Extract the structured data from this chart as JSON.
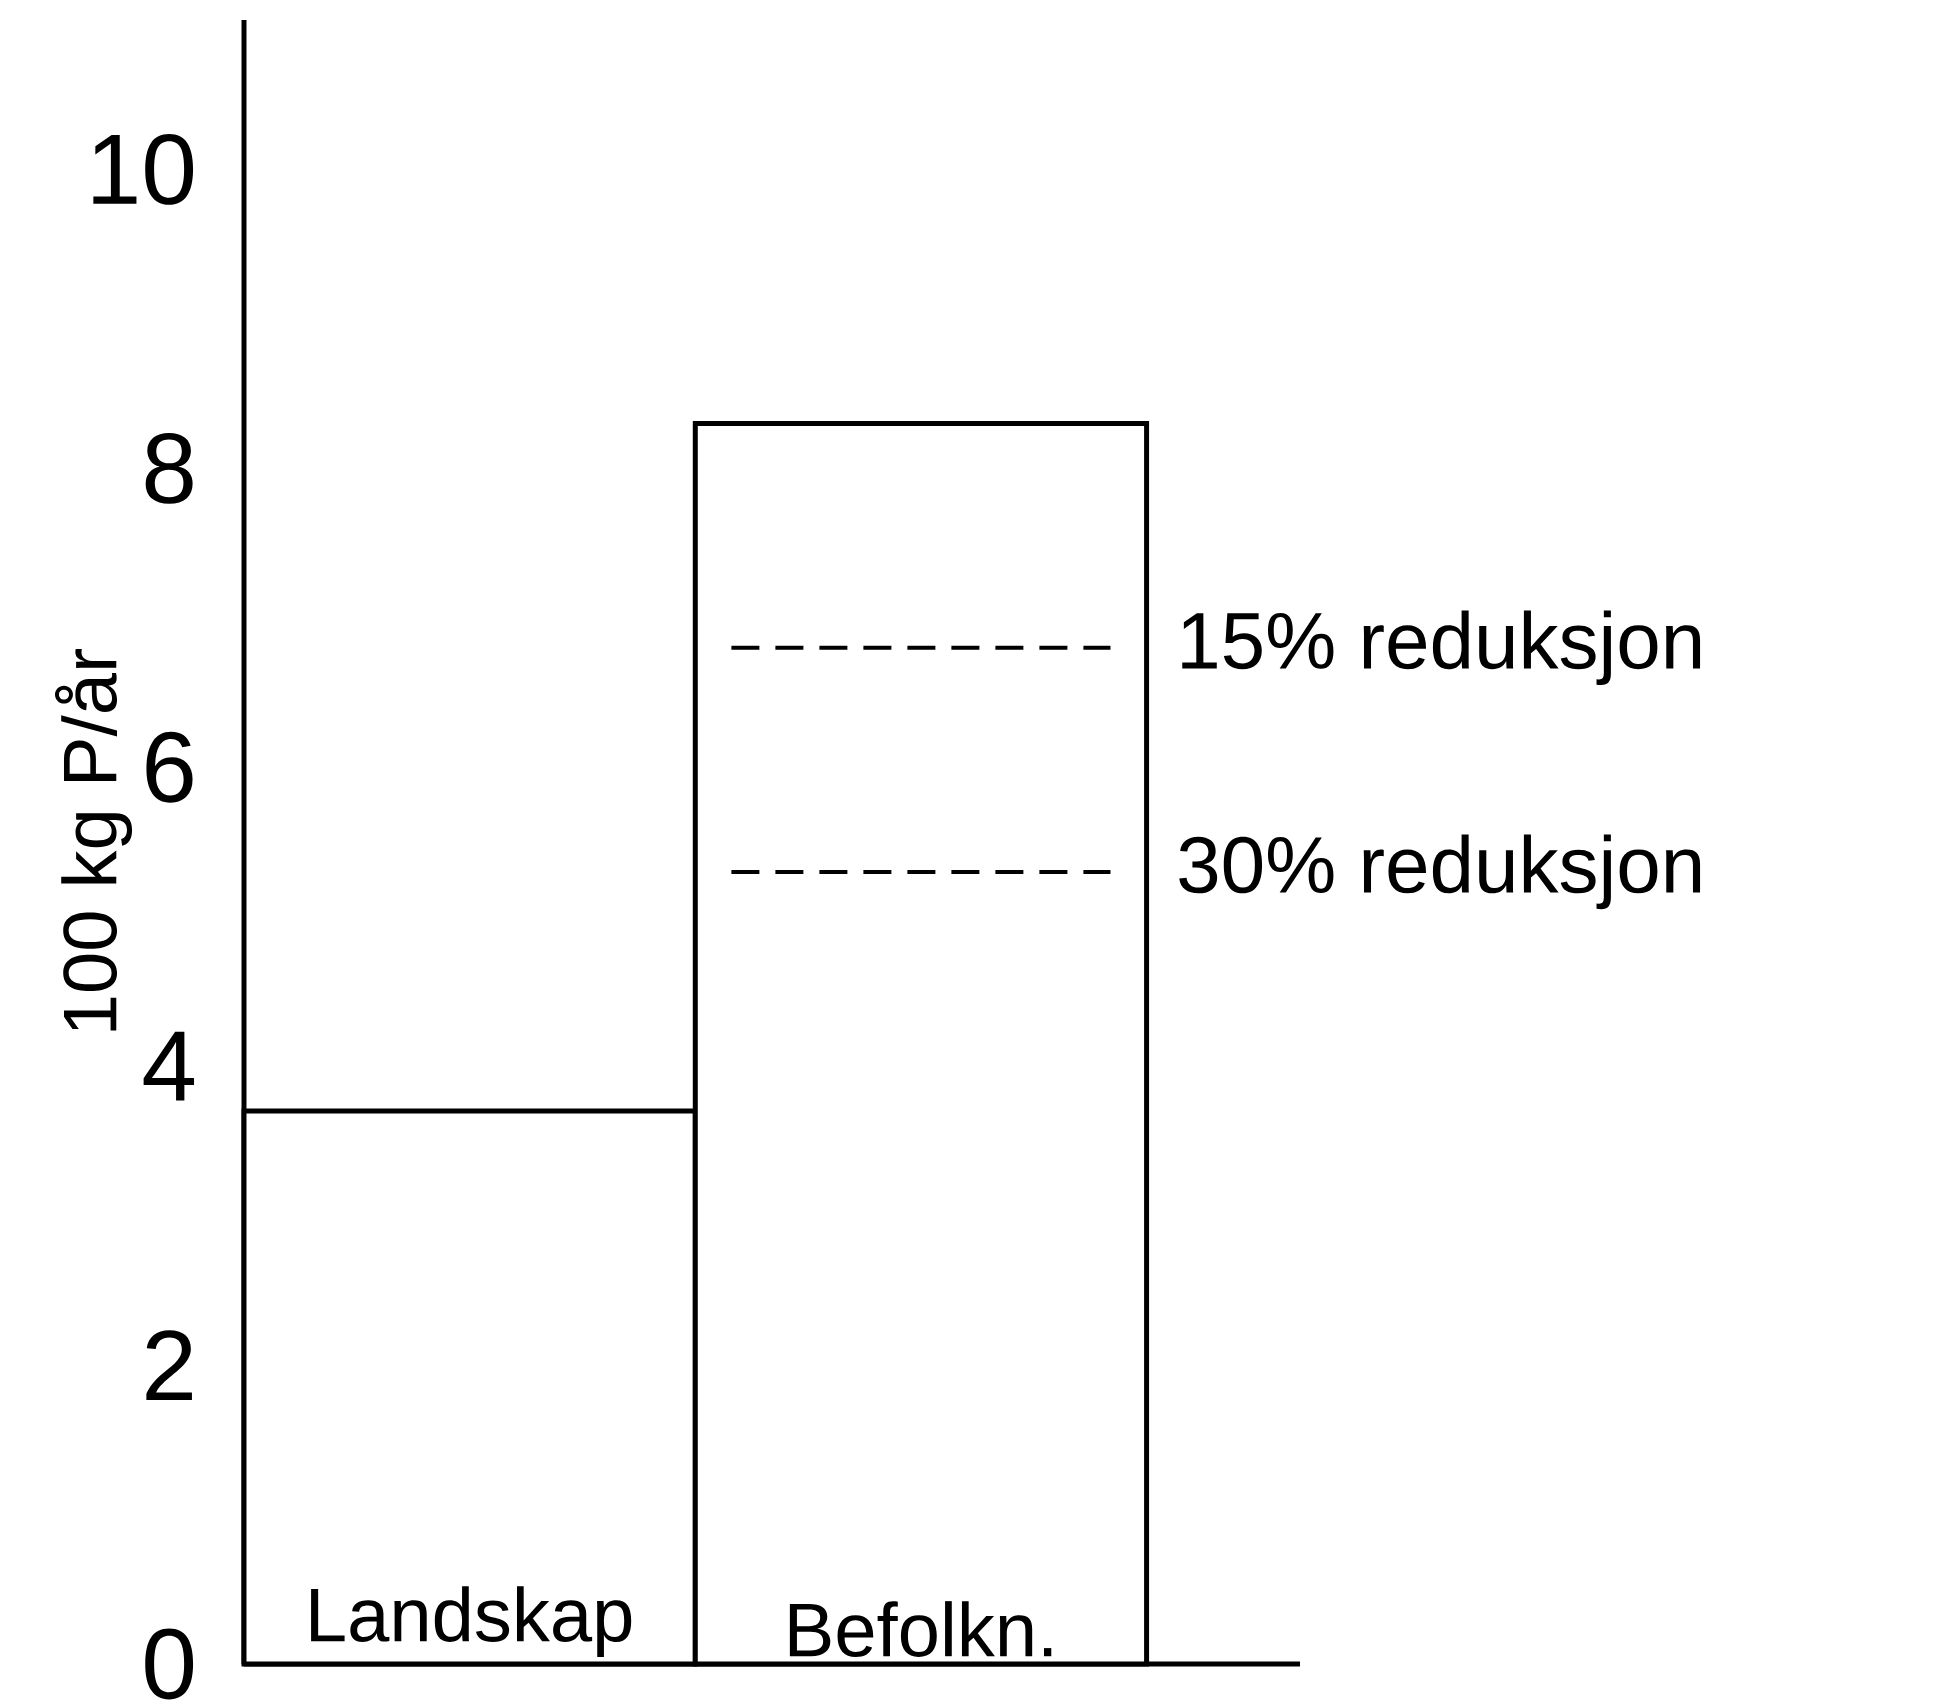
{
  "chart_data": {
    "type": "bar",
    "ylabel": "100 kg P/år",
    "categories": [
      "Landskap",
      "Befolkn."
    ],
    "values": [
      3.7,
      8.3
    ],
    "color": "#ffffff",
    "ylim": [
      0,
      11
    ],
    "yticks": [
      0,
      2,
      4,
      6,
      8,
      10
    ],
    "grid": false,
    "ref_lines": [
      {
        "axis": "y",
        "value": 6.8,
        "label": "15% reduksjon",
        "line_style": "dashed"
      },
      {
        "axis": "y",
        "value": 5.3,
        "label": "30% reduksjon",
        "line_style": "dashed"
      }
    ]
  }
}
